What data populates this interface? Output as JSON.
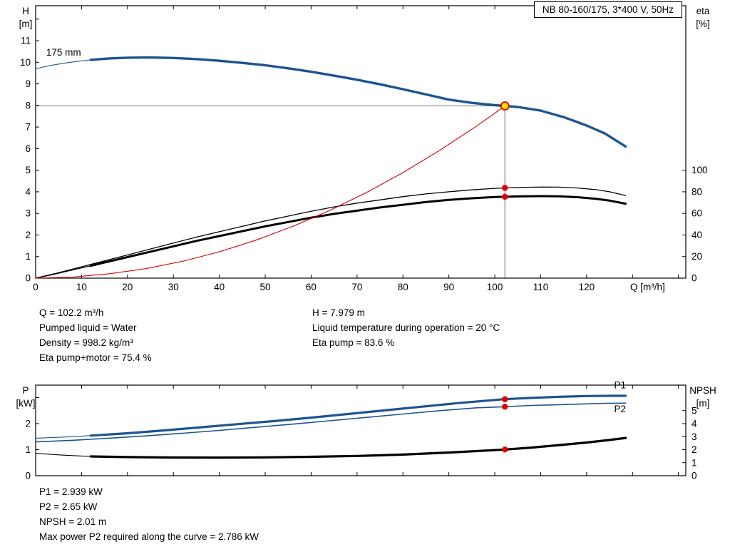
{
  "title_box": "NB 80-160/175, 3*400 V, 50Hz",
  "info": {
    "left_lines": [
      "Q = 102.2 m³/h",
      "Pumped liquid = Water",
      "Density = 998.2 kg/m³",
      "Eta pump+motor = 75.4 %"
    ],
    "right_lines": [
      "H = 7.979 m",
      "Liquid temperature during operation = 20 °C",
      "Eta pump = 83.6 %"
    ]
  },
  "results": [
    "P1 = 2.939 kW",
    "P2 = 2.65 kW",
    "NPSH = 2.01 m",
    "Max power P2 required along the curve = 2.786 kW"
  ],
  "colors": {
    "curve_blue": "#1c5590",
    "label_blue": "#2e6fb8",
    "curve_black": "#000000",
    "curve_red": "#d40000",
    "guide_gray": "#737373",
    "duty_fill": "#ffdf00",
    "duty_ring": "#e10000",
    "dot_red": "#e10000"
  },
  "chart_data": [
    {
      "type": "line",
      "title": "NB 80-160/175, 3*400 V, 50Hz",
      "xlabel": "Q [m³/h]",
      "ylabel_left": [
        "H",
        "[m]"
      ],
      "ylabel_right": [
        "eta",
        "[%]"
      ],
      "xlim": [
        0,
        141.6
      ],
      "ylim_left": [
        0,
        12.62
      ],
      "ylim_right": [
        0,
        252.4
      ],
      "show_x_labels": true,
      "x_ticks": [
        0,
        10,
        20,
        30,
        40,
        50,
        60,
        70,
        80,
        90,
        100,
        110,
        120
      ],
      "x_ticks_unlabeled": [
        130,
        140
      ],
      "y_ticks_left": [
        0,
        1,
        2,
        3,
        4,
        5,
        6,
        7,
        8,
        9,
        10,
        11
      ],
      "y_ticks_left_unlabeled": [
        12
      ],
      "y_ticks_right": [
        0,
        20,
        40,
        60,
        80,
        100
      ],
      "guides": [
        {
          "type": "v",
          "axis": "left",
          "x": 102.2,
          "y1": 0,
          "y2": 7.979
        },
        {
          "type": "h",
          "axis": "left",
          "y": 7.979,
          "x1": 0,
          "x2": 102.2
        }
      ],
      "series": [
        {
          "name": "head-curve-lead",
          "axis": "left",
          "color": "#1c5590",
          "width": 1.1,
          "points": [
            [
              0,
              9.7
            ],
            [
              3,
              9.84
            ],
            [
              6,
              9.95
            ],
            [
              9,
              10.04
            ],
            [
              12,
              10.11
            ],
            [
              14,
              10.15
            ]
          ]
        },
        {
          "name": "eta-pump-curve",
          "axis": "right",
          "color": "#000000",
          "width": 1.3,
          "points": [
            [
              0,
              0
            ],
            [
              5,
              5
            ],
            [
              10,
              10.5
            ],
            [
              15,
              16
            ],
            [
              20,
              21.5
            ],
            [
              25,
              27
            ],
            [
              30,
              32.5
            ],
            [
              35,
              38
            ],
            [
              40,
              43
            ],
            [
              45,
              48
            ],
            [
              50,
              53
            ],
            [
              55,
              57.5
            ],
            [
              60,
              62
            ],
            [
              65,
              66
            ],
            [
              70,
              69.5
            ],
            [
              75,
              72.5
            ],
            [
              80,
              75.5
            ],
            [
              85,
              78
            ],
            [
              90,
              80
            ],
            [
              95,
              81.8
            ],
            [
              100,
              83.2
            ],
            [
              102.2,
              83.6
            ],
            [
              105,
              84.0
            ],
            [
              110,
              84.4
            ],
            [
              114,
              84.3
            ],
            [
              118,
              83.5
            ],
            [
              122,
              82
            ],
            [
              125,
              80
            ],
            [
              128.5,
              76.5
            ]
          ]
        },
        {
          "name": "eta-pump-motor-lead",
          "axis": "right",
          "color": "#000000",
          "width": 1.3,
          "points": [
            [
              0,
              0
            ],
            [
              4,
              3.6
            ],
            [
              8,
              7.6
            ],
            [
              12,
              11.4
            ],
            [
              14,
              13.4
            ]
          ]
        },
        {
          "name": "eta-pump-motor-curve",
          "axis": "right",
          "color": "#000000",
          "width": 3,
          "points": [
            [
              12,
              11.4
            ],
            [
              15,
              14.5
            ],
            [
              20,
              19.5
            ],
            [
              25,
              24.5
            ],
            [
              30,
              29.5
            ],
            [
              35,
              34.5
            ],
            [
              40,
              39
            ],
            [
              45,
              43.5
            ],
            [
              50,
              48
            ],
            [
              55,
              52
            ],
            [
              60,
              56
            ],
            [
              65,
              59.5
            ],
            [
              70,
              62.5
            ],
            [
              75,
              65.5
            ],
            [
              80,
              68
            ],
            [
              85,
              70.5
            ],
            [
              90,
              72.5
            ],
            [
              95,
              74
            ],
            [
              100,
              75.1
            ],
            [
              102.2,
              75.4
            ],
            [
              105,
              75.7
            ],
            [
              110,
              76.0
            ],
            [
              114,
              75.8
            ],
            [
              118,
              75.0
            ],
            [
              122,
              73.5
            ],
            [
              125,
              71.8
            ],
            [
              128.5,
              69.0
            ]
          ]
        },
        {
          "name": "system-resistance-curve",
          "axis": "left",
          "color": "#d40000",
          "width": 1.1,
          "points": [
            [
              0,
              0
            ],
            [
              8,
              0.05
            ],
            [
              16,
              0.2
            ],
            [
              24,
              0.44
            ],
            [
              32,
              0.78
            ],
            [
              40,
              1.22
            ],
            [
              48,
              1.76
            ],
            [
              56,
              2.4
            ],
            [
              64,
              3.13
            ],
            [
              72,
              3.96
            ],
            [
              80,
              4.89
            ],
            [
              88,
              5.92
            ],
            [
              96,
              7.04
            ],
            [
              100,
              7.64
            ],
            [
              102.2,
              7.979
            ]
          ]
        },
        {
          "name": "head-curve-175mm",
          "axis": "left",
          "color": "#1c5590",
          "width": 3.4,
          "points": [
            [
              12,
              10.11
            ],
            [
              16,
              10.18
            ],
            [
              20,
              10.21
            ],
            [
              25,
              10.22
            ],
            [
              30,
              10.2
            ],
            [
              35,
              10.15
            ],
            [
              40,
              10.07
            ],
            [
              45,
              9.97
            ],
            [
              50,
              9.86
            ],
            [
              55,
              9.72
            ],
            [
              60,
              9.56
            ],
            [
              65,
              9.38
            ],
            [
              70,
              9.19
            ],
            [
              75,
              8.98
            ],
            [
              80,
              8.75
            ],
            [
              85,
              8.51
            ],
            [
              90,
              8.27
            ],
            [
              95,
              8.12
            ],
            [
              100,
              8.01
            ],
            [
              102.2,
              7.979
            ],
            [
              105,
              7.93
            ],
            [
              110,
              7.76
            ],
            [
              115,
              7.46
            ],
            [
              120,
              7.07
            ],
            [
              124,
              6.7
            ],
            [
              128.5,
              6.1
            ]
          ]
        }
      ],
      "annotations": [
        {
          "name": "impeller-diameter-label",
          "text": "175 mm",
          "x": 2.3,
          "y": 10.3,
          "axis": "left",
          "color": "#000000"
        }
      ],
      "markers": [
        {
          "name": "duty-point",
          "kind": "duty",
          "x": 102.2,
          "y": 7.979,
          "axis": "left",
          "r": 5.5
        },
        {
          "name": "eta-pump-point",
          "kind": "dot",
          "x": 102.2,
          "y": 83.6,
          "axis": "right",
          "r": 4.2
        },
        {
          "name": "eta-pump-motor-point",
          "kind": "dot",
          "x": 102.2,
          "y": 75.4,
          "axis": "right",
          "r": 4.2
        }
      ]
    },
    {
      "type": "line",
      "title": "Power and NPSH curves",
      "xlabel": "",
      "ylabel_left": [
        "P",
        "[kW]"
      ],
      "ylabel_right": [
        "NPSH",
        "[m]"
      ],
      "xlim": [
        0,
        141.6
      ],
      "ylim_left": [
        0,
        3.48
      ],
      "ylim_right": [
        0,
        6.96
      ],
      "show_x_labels": false,
      "x_ticks": [],
      "x_ticks_unlabeled": [
        0,
        10,
        20,
        30,
        40,
        50,
        60,
        70,
        80,
        90,
        100,
        110,
        120,
        130,
        140
      ],
      "y_ticks_left": [
        0,
        1,
        2
      ],
      "y_ticks_left_unlabeled": [
        3
      ],
      "y_ticks_right": [
        0,
        1,
        2,
        3,
        4,
        5
      ],
      "guides": [],
      "series": [
        {
          "name": "p1-curve-lead",
          "axis": "left",
          "color": "#1c5590",
          "width": 1.1,
          "points": [
            [
              0,
              1.44
            ],
            [
              4,
              1.47
            ],
            [
              8,
              1.5
            ],
            [
              12,
              1.54
            ],
            [
              14,
              1.56
            ]
          ]
        },
        {
          "name": "p2-curve",
          "axis": "left",
          "color": "#1c5590",
          "width": 1.6,
          "points": [
            [
              0,
              1.3
            ],
            [
              8,
              1.36
            ],
            [
              16,
              1.44
            ],
            [
              24,
              1.53
            ],
            [
              32,
              1.63
            ],
            [
              40,
              1.74
            ],
            [
              48,
              1.86
            ],
            [
              56,
              1.98
            ],
            [
              64,
              2.11
            ],
            [
              72,
              2.24
            ],
            [
              80,
              2.37
            ],
            [
              88,
              2.5
            ],
            [
              96,
              2.61
            ],
            [
              102.2,
              2.65
            ],
            [
              108,
              2.7
            ],
            [
              114,
              2.73
            ],
            [
              120,
              2.76
            ],
            [
              124,
              2.78
            ],
            [
              128.5,
              2.786
            ]
          ]
        },
        {
          "name": "p1-curve",
          "axis": "left",
          "color": "#1c5590",
          "width": 3.2,
          "points": [
            [
              12,
              1.54
            ],
            [
              20,
              1.63
            ],
            [
              28,
              1.74
            ],
            [
              36,
              1.86
            ],
            [
              44,
              1.98
            ],
            [
              52,
              2.1
            ],
            [
              60,
              2.23
            ],
            [
              68,
              2.37
            ],
            [
              76,
              2.51
            ],
            [
              84,
              2.65
            ],
            [
              92,
              2.79
            ],
            [
              100,
              2.91
            ],
            [
              102.2,
              2.939
            ],
            [
              108,
              2.99
            ],
            [
              114,
              3.03
            ],
            [
              120,
              3.06
            ],
            [
              125,
              3.07
            ],
            [
              128.5,
              3.07
            ]
          ]
        },
        {
          "name": "npsh-curve-lead",
          "axis": "right",
          "color": "#000000",
          "width": 1.1,
          "points": [
            [
              0,
              1.72
            ],
            [
              5,
              1.6
            ],
            [
              10,
              1.51
            ],
            [
              14,
              1.47
            ]
          ]
        },
        {
          "name": "npsh-curve",
          "axis": "right",
          "color": "#000000",
          "width": 3.2,
          "points": [
            [
              12,
              1.48
            ],
            [
              20,
              1.43
            ],
            [
              30,
              1.4
            ],
            [
              40,
              1.39
            ],
            [
              50,
              1.41
            ],
            [
              60,
              1.45
            ],
            [
              70,
              1.52
            ],
            [
              80,
              1.62
            ],
            [
              90,
              1.78
            ],
            [
              96,
              1.89
            ],
            [
              102.2,
              2.01
            ],
            [
              108,
              2.16
            ],
            [
              114,
              2.35
            ],
            [
              120,
              2.55
            ],
            [
              124,
              2.71
            ],
            [
              128.5,
              2.9
            ]
          ]
        }
      ],
      "annotations": [
        {
          "name": "p1-label",
          "text": "P1",
          "x": 126,
          "y": 3.36,
          "axis": "left",
          "color": "#2e6fb8"
        },
        {
          "name": "p2-label",
          "text": "P2",
          "x": 126,
          "y": 2.44,
          "axis": "left",
          "color": "#2e6fb8"
        }
      ],
      "markers": [
        {
          "name": "p1-point",
          "kind": "dot",
          "x": 102.2,
          "y": 2.939,
          "axis": "left",
          "r": 4.2
        },
        {
          "name": "p2-point",
          "kind": "dot",
          "x": 102.2,
          "y": 2.65,
          "axis": "left",
          "r": 4.2
        },
        {
          "name": "npsh-point",
          "kind": "dot",
          "x": 102.2,
          "y": 2.01,
          "axis": "right",
          "r": 4.2
        }
      ]
    }
  ]
}
